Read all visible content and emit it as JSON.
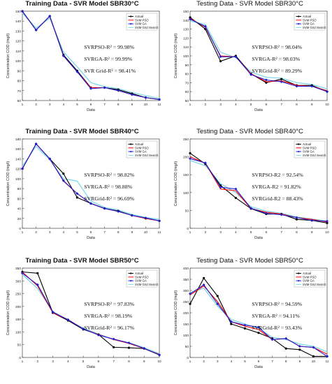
{
  "chart_data": [
    {
      "type": "line",
      "title": "Training Data - SVR Model SBR30°C",
      "title_weight": "bold",
      "xlabel": "Data",
      "ylabel": "Concentration COD (mg/l)",
      "x": [
        1,
        2,
        3,
        4,
        5,
        6,
        7,
        8,
        9,
        10,
        11
      ],
      "xticks": [
        "1",
        "2",
        "3",
        "4",
        "5",
        "6",
        "7",
        "8",
        "9",
        "10",
        "11"
      ],
      "xlim": [
        1,
        11
      ],
      "ylim": [
        60,
        150
      ],
      "yticks": [
        "60",
        "70",
        "80",
        "90",
        "100",
        "110",
        "120",
        "130",
        "140",
        "150"
      ],
      "ytick_values": [
        60,
        70,
        80,
        90,
        100,
        110,
        120,
        130,
        140,
        150
      ],
      "series": [
        {
          "name": "Actual",
          "color": "#000000",
          "marker": "circle",
          "values": [
            150,
            131,
            145,
            106,
            90,
            73,
            73,
            71,
            67,
            63,
            61
          ]
        },
        {
          "name": "SVM PSO",
          "color": "#ff0000",
          "marker": "none",
          "values": [
            150,
            131,
            145,
            105,
            89,
            73,
            73,
            70,
            66,
            63,
            61
          ]
        },
        {
          "name": "SVM GA",
          "color": "#1f1fcf",
          "marker": "diamond",
          "values": [
            150,
            131,
            145,
            105,
            89,
            72,
            73,
            70,
            66,
            63,
            61
          ]
        },
        {
          "name": "SVM Grid Search",
          "color": "#7fd8e6",
          "marker": "none",
          "values": [
            148,
            133,
            143,
            109,
            94,
            78,
            74,
            72,
            68,
            65,
            62
          ]
        }
      ],
      "annotations": [
        "SVRPSO-R² = 99.98%",
        "SVRGA-R² = 99.99%",
        "SVR Grid-R² = 98.41%"
      ],
      "legend": "top-right",
      "grid": false
    },
    {
      "type": "line",
      "title": "Testing Data - SVR Model SBR30°C",
      "title_weight": "normal",
      "xlabel": "Data",
      "ylabel": "Concentration COD (mg/l)",
      "x": [
        1,
        2,
        3,
        4,
        5,
        6,
        7,
        8,
        9,
        10
      ],
      "xticks": [
        "1",
        "2",
        "3",
        "4",
        "5",
        "6",
        "7",
        "8",
        "9",
        "10"
      ],
      "xlim": [
        1,
        10
      ],
      "ylim": [
        50,
        150
      ],
      "yticks": [
        "50",
        "60",
        "70",
        "80",
        "90",
        "100",
        "110",
        "120",
        "130",
        "140",
        "150"
      ],
      "ytick_values": [
        50,
        60,
        70,
        80,
        90,
        100,
        110,
        120,
        130,
        140,
        150
      ],
      "series": [
        {
          "name": "Actual",
          "color": "#000000",
          "marker": "circle",
          "values": [
            143,
            130,
            94,
            100,
            80,
            70,
            74,
            67,
            67,
            60
          ]
        },
        {
          "name": "SVM PSO",
          "color": "#ff0000",
          "marker": "none",
          "values": [
            142,
            132,
            100,
            99,
            80,
            71,
            72,
            67,
            66,
            61
          ]
        },
        {
          "name": "SVM GA",
          "color": "#1f1fcf",
          "marker": "diamond",
          "values": [
            141,
            133,
            99,
            99,
            79,
            73,
            71,
            66,
            66,
            60
          ]
        },
        {
          "name": "SVM Grid Search",
          "color": "#7fd8e6",
          "marker": "none",
          "values": [
            139,
            135,
            104,
            98,
            82,
            76,
            75,
            70,
            68,
            63
          ]
        }
      ],
      "annotations": [
        "SVRPSO-R² = 98.04%",
        "SVRGA-R² = 98.03%",
        "SVRGrid-R² = 89.29%"
      ],
      "legend": "top-right",
      "grid": false
    },
    {
      "type": "line",
      "title": "Training Data - SVR Model SBR40°C",
      "title_weight": "bold",
      "xlabel": "Data",
      "ylabel": "Concentration COD (mg/l)",
      "x": [
        1,
        2,
        3,
        4,
        5,
        6,
        7,
        8,
        9,
        10,
        11
      ],
      "xticks": [
        "1",
        "2",
        "3",
        "4",
        "5",
        "6",
        "7",
        "8",
        "9",
        "10",
        "11"
      ],
      "xlim": [
        1,
        11
      ],
      "ylim": [
        0,
        180
      ],
      "yticks": [
        "0",
        "20",
        "40",
        "60",
        "80",
        "100",
        "120",
        "140",
        "160",
        "180"
      ],
      "ytick_values": [
        0,
        20,
        40,
        60,
        80,
        100,
        120,
        140,
        160,
        180
      ],
      "series": [
        {
          "name": "Actual",
          "color": "#000000",
          "marker": "circle",
          "values": [
            120,
            170,
            140,
            110,
            62,
            50,
            40,
            35,
            26,
            20,
            15
          ]
        },
        {
          "name": "SVM PSO",
          "color": "#ff0000",
          "marker": "none",
          "values": [
            120,
            170,
            140,
            95,
            70,
            50,
            40,
            34,
            26,
            20,
            15
          ]
        },
        {
          "name": "SVM GA",
          "color": "#1f1fcf",
          "marker": "diamond",
          "values": [
            120,
            170,
            140,
            96,
            70,
            50,
            40,
            34,
            26,
            21,
            15
          ]
        },
        {
          "name": "SVM Grid Search",
          "color": "#7fd8e6",
          "marker": "none",
          "values": [
            125,
            165,
            138,
            100,
            95,
            55,
            42,
            37,
            28,
            22,
            18
          ]
        }
      ],
      "annotations": [
        "SVRPSO-R² = 98.82%",
        "SVRGA-R² = 98.88%",
        "SVRGrid-R² = 96.69%"
      ],
      "legend": "top-right",
      "grid": false
    },
    {
      "type": "line",
      "title": "Testing Data - SVR Model SBR40°C",
      "title_weight": "normal",
      "xlabel": "Data",
      "ylabel": "Concentration COD (mg/l)",
      "x": [
        1,
        2,
        3,
        4,
        5,
        6,
        7,
        8,
        9,
        10
      ],
      "xticks": [
        "1",
        "2",
        "3",
        "4",
        "5",
        "6",
        "7",
        "8",
        "9",
        "10"
      ],
      "xlim": [
        1,
        10
      ],
      "ylim": [
        0,
        250
      ],
      "yticks": [
        "0",
        "50",
        "100",
        "150",
        "200",
        "250"
      ],
      "ytick_values": [
        0,
        50,
        100,
        150,
        200,
        250
      ],
      "series": [
        {
          "name": "Actual",
          "color": "#000000",
          "marker": "circle",
          "values": [
            210,
            180,
            120,
            85,
            55,
            40,
            40,
            25,
            22,
            15
          ]
        },
        {
          "name": "SVM PSO",
          "color": "#ff0000",
          "marker": "none",
          "values": [
            200,
            182,
            110,
            105,
            55,
            45,
            40,
            30,
            25,
            18
          ]
        },
        {
          "name": "SVM GA",
          "color": "#1f1fcf",
          "marker": "diamond",
          "values": [
            195,
            183,
            115,
            110,
            56,
            42,
            38,
            30,
            22,
            20
          ]
        },
        {
          "name": "SVM Grid Search",
          "color": "#7fd8e6",
          "marker": "none",
          "values": [
            190,
            175,
            125,
            100,
            60,
            48,
            42,
            32,
            26,
            20
          ]
        }
      ],
      "annotations": [
        "SVRPSO-R2 = 92.54%",
        "SVRGA-R2 = 91.82%",
        "SVRGrid-R2 = 88.43%"
      ],
      "legend": "top-right",
      "grid": false
    },
    {
      "type": "line",
      "title": "Training Data - SVR Model SBR50°C",
      "title_weight": "bold",
      "xlabel": "Data",
      "ylabel": "Concentration COD (mg/l)",
      "x": [
        1,
        2,
        3,
        4,
        5,
        6,
        7,
        8,
        9,
        10
      ],
      "xticks": [
        "1",
        "2",
        "3",
        "4",
        "5",
        "6",
        "7",
        "8",
        "9",
        "10"
      ],
      "xlim": [
        1,
        10
      ],
      "ylim": [
        0,
        350
      ],
      "yticks": [
        "0",
        "50",
        "100",
        "150",
        "200",
        "250",
        "300",
        "350"
      ],
      "ytick_values": [
        0,
        50,
        100,
        150,
        200,
        250,
        300,
        350
      ],
      "series": [
        {
          "name": "Actual",
          "color": "#000000",
          "marker": "circle",
          "values": [
            335,
            330,
            175,
            145,
            110,
            90,
            40,
            38,
            35,
            10
          ]
        },
        {
          "name": "SVM PSO",
          "color": "#ff0000",
          "marker": "none",
          "values": [
            335,
            280,
            175,
            148,
            112,
            90,
            70,
            55,
            35,
            12
          ]
        },
        {
          "name": "SVM GA",
          "color": "#1f1fcf",
          "marker": "diamond",
          "values": [
            330,
            285,
            178,
            148,
            112,
            88,
            72,
            57,
            36,
            10
          ]
        },
        {
          "name": "SVM Grid Search",
          "color": "#7fd8e6",
          "marker": "none",
          "values": [
            325,
            270,
            180,
            145,
            115,
            92,
            70,
            58,
            38,
            15
          ]
        }
      ],
      "annotations": [
        "SVRPSO-R² = 97.83%",
        "SVRGA-R² = 98.19%",
        "SVRGrid-R² = 96.17%"
      ],
      "legend": "top-right",
      "grid": false
    },
    {
      "type": "line",
      "title": "Testing Data - SVR Model SBR50°C",
      "title_weight": "normal",
      "xlabel": "Data",
      "ylabel": "Concentration COD (mg/l)",
      "x": [
        1,
        2,
        3,
        4,
        5,
        6,
        7,
        8,
        9,
        10,
        11
      ],
      "xticks": [
        "1",
        "2",
        "3",
        "4",
        "5",
        "6",
        "7",
        "8",
        "9",
        "10",
        "11"
      ],
      "xlim": [
        1,
        11
      ],
      "ylim": [
        0,
        400
      ],
      "yticks": [
        "0",
        "50",
        "100",
        "150",
        "200",
        "250",
        "300",
        "350",
        "400"
      ],
      "ytick_values": [
        0,
        50,
        100,
        150,
        200,
        250,
        300,
        350,
        400
      ],
      "series": [
        {
          "name": "Actual",
          "color": "#000000",
          "marker": "circle",
          "values": [
            240,
            355,
            275,
            150,
            130,
            110,
            85,
            40,
            35,
            5,
            5
          ]
        },
        {
          "name": "SVM PSO",
          "color": "#ff0000",
          "marker": "none",
          "values": [
            280,
            320,
            250,
            160,
            140,
            125,
            80,
            85,
            50,
            45,
            15
          ]
        },
        {
          "name": "SVM GA",
          "color": "#1f1fcf",
          "marker": "diamond",
          "values": [
            285,
            325,
            240,
            160,
            145,
            135,
            80,
            85,
            50,
            45,
            5
          ]
        },
        {
          "name": "SVM Grid Search",
          "color": "#7fd8e6",
          "marker": "none",
          "values": [
            290,
            310,
            230,
            170,
            150,
            130,
            90,
            80,
            60,
            50,
            25
          ]
        }
      ],
      "annotations": [
        "SVRPSO-R² = 94.59%",
        "SVRGA-R² = 94.11%",
        "SVRGrid-R² = 93.43%"
      ],
      "legend": "top-right",
      "grid": false
    }
  ]
}
